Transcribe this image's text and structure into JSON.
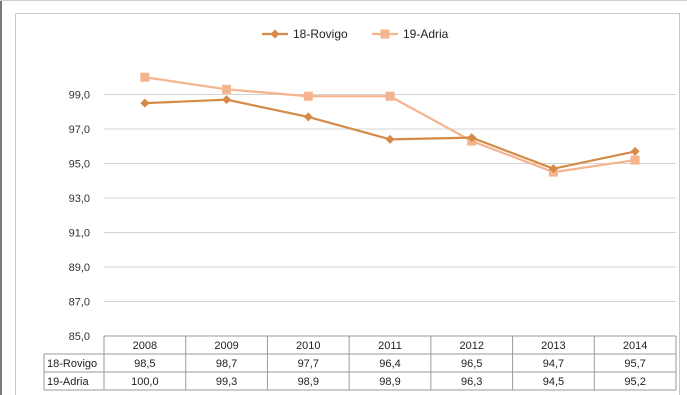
{
  "chart_data": {
    "type": "line",
    "title": "",
    "categories": [
      "2008",
      "2009",
      "2010",
      "2011",
      "2012",
      "2013",
      "2014"
    ],
    "series": [
      {
        "name": "18-Rovigo",
        "values": [
          98.5,
          98.7,
          97.7,
          96.4,
          96.5,
          94.7,
          95.7
        ],
        "labels": [
          "98,5",
          "98,7",
          "97,7",
          "96,4",
          "96,5",
          "94,7",
          "95,7"
        ],
        "color": "#d68a48",
        "marker": "diamond"
      },
      {
        "name": "19-Adria",
        "values": [
          100.0,
          99.3,
          98.9,
          98.9,
          96.3,
          94.5,
          95.2
        ],
        "labels": [
          "100,0",
          "99,3",
          "98,9",
          "98,9",
          "96,3",
          "94,5",
          "95,2"
        ],
        "color": "#f6b48e",
        "marker": "square"
      }
    ],
    "ylim": [
      85,
      101
    ],
    "yticks": [
      85,
      87,
      89,
      91,
      93,
      95,
      97,
      99
    ],
    "ytick_labels": [
      "85,0",
      "87,0",
      "89,0",
      "91,0",
      "93,0",
      "95,0",
      "97,0",
      "99,0"
    ],
    "grid": true,
    "legend": "top",
    "data_table": true
  }
}
